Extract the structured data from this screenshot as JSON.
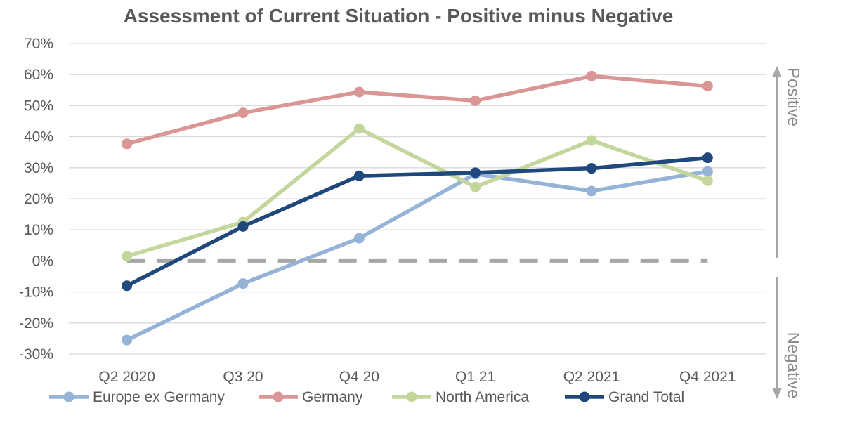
{
  "chart_data": {
    "type": "line",
    "title": "Assessment of Current Situation - Positive minus Negative",
    "categories": [
      "Q2 2020",
      "Q3 20",
      "Q4 20",
      "Q1 21",
      "Q2 2021",
      "Q4 2021"
    ],
    "ylim": [
      -30,
      70
    ],
    "yticks": [
      70,
      60,
      50,
      40,
      30,
      20,
      10,
      0,
      -10,
      -20,
      -30
    ],
    "ytick_labels": [
      "70%",
      "60%",
      "50%",
      "40%",
      "30%",
      "20%",
      "10%",
      "0%",
      "-10%",
      "-20%",
      "-30%"
    ],
    "grid": true,
    "legend_position": "bottom",
    "reference_line": {
      "value": 0,
      "style": "dashed",
      "color": "#a6a6a6"
    },
    "series": [
      {
        "name": "Europe ex Germany",
        "color": "#95b3d7",
        "values": [
          -25.5,
          -7.3,
          7.3,
          28,
          22.5,
          28.8
        ]
      },
      {
        "name": "Germany",
        "color": "#d99694",
        "values": [
          37.7,
          47.7,
          54.4,
          51.6,
          59.5,
          56.3
        ]
      },
      {
        "name": "North America",
        "color": "#c3d69b",
        "values": [
          1.5,
          12.5,
          42.6,
          23.8,
          38.8,
          25.8
        ]
      },
      {
        "name": "Grand Total",
        "color": "#1f497d",
        "values": [
          -8,
          11.1,
          27.4,
          28.4,
          29.8,
          33.2
        ]
      }
    ],
    "annotations": {
      "positive_label": "Positive",
      "negative_label": "Negative"
    }
  }
}
